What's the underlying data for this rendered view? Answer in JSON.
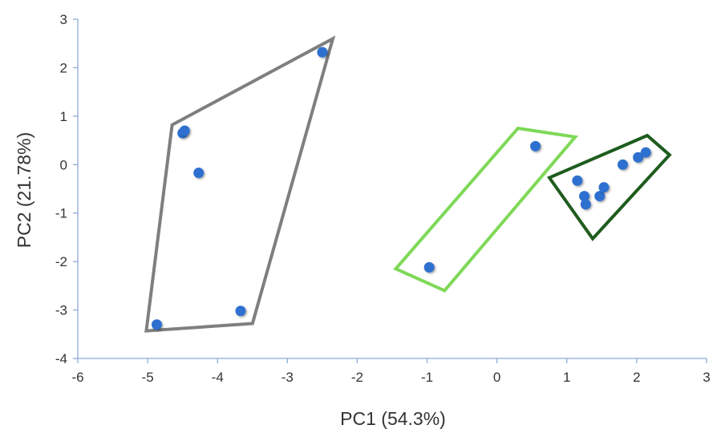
{
  "chart_data": {
    "type": "scatter",
    "xlabel": "PC1 (54.3%)",
    "ylabel": "PC2 (21.78%)",
    "xlim": [
      -6,
      3
    ],
    "ylim": [
      -4,
      3
    ],
    "xticks": [
      -6,
      -5,
      -4,
      -3,
      -2,
      -1,
      0,
      1,
      2,
      3
    ],
    "yticks": [
      -4,
      -3,
      -2,
      -1,
      0,
      1,
      2,
      3
    ],
    "grid": false,
    "point_color": "#2F6FD0",
    "points": [
      {
        "x": -4.5,
        "y": 0.65
      },
      {
        "x": -4.47,
        "y": 0.7
      },
      {
        "x": -4.27,
        "y": -0.17
      },
      {
        "x": -2.5,
        "y": 2.32
      },
      {
        "x": -3.67,
        "y": -3.02
      },
      {
        "x": -4.87,
        "y": -3.3
      },
      {
        "x": -0.97,
        "y": -2.12
      },
      {
        "x": 0.55,
        "y": 0.38
      },
      {
        "x": 1.15,
        "y": -0.33
      },
      {
        "x": 1.25,
        "y": -0.65
      },
      {
        "x": 1.27,
        "y": -0.82
      },
      {
        "x": 1.47,
        "y": -0.65
      },
      {
        "x": 1.53,
        "y": -0.47
      },
      {
        "x": 1.8,
        "y": 0.0
      },
      {
        "x": 2.02,
        "y": 0.15
      },
      {
        "x": 2.13,
        "y": 0.25
      }
    ],
    "groups": [
      {
        "color": "#7F7F7F",
        "polygon": [
          [
            -4.65,
            0.82
          ],
          [
            -2.35,
            2.6
          ],
          [
            -3.5,
            -3.28
          ],
          [
            -5.02,
            -3.43
          ]
        ]
      },
      {
        "color": "#7ED957",
        "polygon": [
          [
            0.3,
            0.75
          ],
          [
            1.12,
            0.57
          ],
          [
            -0.75,
            -2.6
          ],
          [
            -1.45,
            -2.15
          ]
        ]
      },
      {
        "color": "#1E5C1E",
        "polygon": [
          [
            0.75,
            -0.27
          ],
          [
            2.15,
            0.6
          ],
          [
            2.47,
            0.2
          ],
          [
            1.37,
            -1.53
          ]
        ]
      }
    ]
  }
}
